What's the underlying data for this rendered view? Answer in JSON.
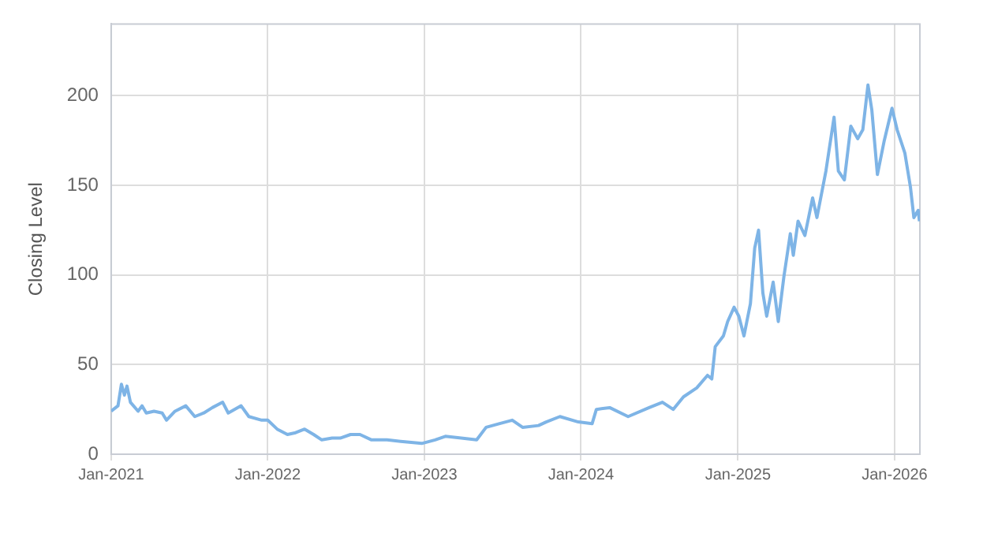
{
  "chart_data": {
    "type": "line",
    "ylabel": "Closing Level",
    "xlim": [
      "2021-01-01",
      "2026-03-01"
    ],
    "xticks": [
      {
        "value": "2021-01-01",
        "label": "Jan-2021"
      },
      {
        "value": "2022-01-01",
        "label": "Jan-2022"
      },
      {
        "value": "2023-01-01",
        "label": "Jan-2023"
      },
      {
        "value": "2024-01-01",
        "label": "Jan-2024"
      },
      {
        "value": "2025-01-01",
        "label": "Jan-2025"
      },
      {
        "value": "2026-01-01",
        "label": "Jan-2026"
      }
    ],
    "ylim": [
      0,
      240
    ],
    "yticks": [
      0,
      50,
      100,
      150,
      200
    ],
    "grid": true,
    "line_style": "solid",
    "marker": "none",
    "x": [
      "2021-01-01",
      "2021-01-17",
      "2021-01-25",
      "2021-02-01",
      "2021-02-07",
      "2021-02-15",
      "2021-03-05",
      "2021-03-14",
      "2021-03-24",
      "2021-04-11",
      "2021-04-30",
      "2021-05-10",
      "2021-05-30",
      "2021-06-24",
      "2021-07-15",
      "2021-08-05",
      "2021-08-25",
      "2021-09-18",
      "2021-10-01",
      "2021-10-31",
      "2021-11-18",
      "2021-12-18",
      "2022-01-01",
      "2022-01-23",
      "2022-02-16",
      "2022-03-07",
      "2022-03-28",
      "2022-04-18",
      "2022-05-07",
      "2022-05-31",
      "2022-06-19",
      "2022-07-13",
      "2022-08-04",
      "2022-08-31",
      "2022-10-06",
      "2022-11-12",
      "2022-12-26",
      "2023-01-26",
      "2023-02-19",
      "2023-03-28",
      "2023-05-03",
      "2023-05-25",
      "2023-06-24",
      "2023-07-25",
      "2023-08-18",
      "2023-09-24",
      "2023-10-12",
      "2023-11-13",
      "2023-12-26",
      "2024-01-27",
      "2024-02-06",
      "2024-03-08",
      "2024-04-20",
      "2024-06-08",
      "2024-07-09",
      "2024-08-03",
      "2024-08-27",
      "2024-09-27",
      "2024-10-22",
      "2024-11-01",
      "2024-11-09",
      "2024-11-28",
      "2024-12-08",
      "2024-12-23",
      "2025-01-03",
      "2025-01-15",
      "2025-01-30",
      "2025-02-09",
      "2025-02-18",
      "2025-02-28",
      "2025-03-09",
      "2025-03-24",
      "2025-04-05",
      "2025-04-18",
      "2025-05-03",
      "2025-05-10",
      "2025-05-21",
      "2025-06-06",
      "2025-06-24",
      "2025-07-04",
      "2025-07-25",
      "2025-08-13",
      "2025-08-23",
      "2025-09-06",
      "2025-09-21",
      "2025-10-07",
      "2025-10-19",
      "2025-10-31",
      "2025-11-09",
      "2025-11-22",
      "2025-12-08",
      "2025-12-26",
      "2026-01-07",
      "2026-01-25",
      "2026-02-07",
      "2026-02-15",
      "2026-02-25",
      "2026-02-28"
    ],
    "series": [
      {
        "color": "#7eb4e6",
        "values": [
          24,
          27,
          39,
          33,
          38,
          29,
          24,
          27,
          23,
          24,
          23,
          19,
          24,
          27,
          21,
          23,
          26,
          29,
          23,
          27,
          21,
          19,
          19,
          14,
          11,
          12,
          14,
          11,
          8,
          9,
          9,
          11,
          11,
          8,
          8,
          7,
          6,
          8,
          10,
          9,
          8,
          15,
          17,
          19,
          15,
          16,
          18,
          21,
          18,
          17,
          25,
          26,
          21,
          26,
          29,
          25,
          32,
          37,
          44,
          42,
          60,
          66,
          74,
          82,
          77,
          66,
          84,
          115,
          125,
          90,
          77,
          96,
          74,
          99,
          123,
          111,
          130,
          122,
          143,
          132,
          158,
          188,
          158,
          153,
          183,
          176,
          181,
          206,
          192,
          156,
          175,
          193,
          181,
          168,
          149,
          132,
          136,
          130
        ]
      }
    ]
  }
}
